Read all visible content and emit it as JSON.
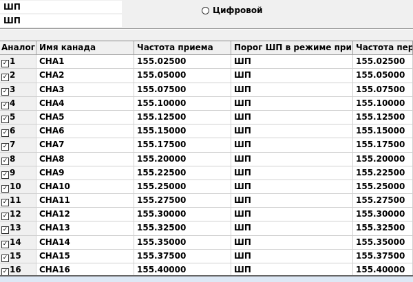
{
  "fields": [
    "ШП",
    "ШП"
  ],
  "radio": {
    "label": "Цифровой",
    "selected": false
  },
  "table": {
    "headers": [
      "Аналог",
      "Имя канада",
      "Частота приема",
      "Порог ШП в режиме при",
      "Частота пер"
    ],
    "rows": [
      {
        "n": "1",
        "name": "CHA1",
        "rx": "155.02500",
        "thr": "ШП",
        "tx": "155.02500",
        "checked": true
      },
      {
        "n": "2",
        "name": "CHA2",
        "rx": "155.05000",
        "thr": "ШП",
        "tx": "155.05000",
        "checked": true
      },
      {
        "n": "3",
        "name": "CHA3",
        "rx": "155.07500",
        "thr": "ШП",
        "tx": "155.07500",
        "checked": true
      },
      {
        "n": "4",
        "name": "CHA4",
        "rx": "155.10000",
        "thr": "ШП",
        "tx": "155.10000",
        "checked": true
      },
      {
        "n": "5",
        "name": "CHA5",
        "rx": "155.12500",
        "thr": "ШП",
        "tx": "155.12500",
        "checked": true
      },
      {
        "n": "6",
        "name": "CHA6",
        "rx": "155.15000",
        "thr": "ШП",
        "tx": "155.15000",
        "checked": true
      },
      {
        "n": "7",
        "name": "CHA7",
        "rx": "155.17500",
        "thr": "ШП",
        "tx": "155.17500",
        "checked": true
      },
      {
        "n": "8",
        "name": "CHA8",
        "rx": "155.20000",
        "thr": "ШП",
        "tx": "155.20000",
        "checked": true
      },
      {
        "n": "9",
        "name": "CHA9",
        "rx": "155.22500",
        "thr": "ШП",
        "tx": "155.22500",
        "checked": true
      },
      {
        "n": "10",
        "name": "CHA10",
        "rx": "155.25000",
        "thr": "ШП",
        "tx": "155.25000",
        "checked": true
      },
      {
        "n": "11",
        "name": "CHA11",
        "rx": "155.27500",
        "thr": "ШП",
        "tx": "155.27500",
        "checked": true
      },
      {
        "n": "12",
        "name": "CHA12",
        "rx": "155.30000",
        "thr": "ШП",
        "tx": "155.30000",
        "checked": true
      },
      {
        "n": "13",
        "name": "CHA13",
        "rx": "155.32500",
        "thr": "ШП",
        "tx": "155.32500",
        "checked": true
      },
      {
        "n": "14",
        "name": "CHA14",
        "rx": "155.35000",
        "thr": "ШП",
        "tx": "155.35000",
        "checked": true
      },
      {
        "n": "15",
        "name": "CHA15",
        "rx": "155.37500",
        "thr": "ШП",
        "tx": "155.37500",
        "checked": true
      },
      {
        "n": "16",
        "name": "CHA16",
        "rx": "155.40000",
        "thr": "ШП",
        "tx": "155.40000",
        "checked": true
      }
    ]
  }
}
